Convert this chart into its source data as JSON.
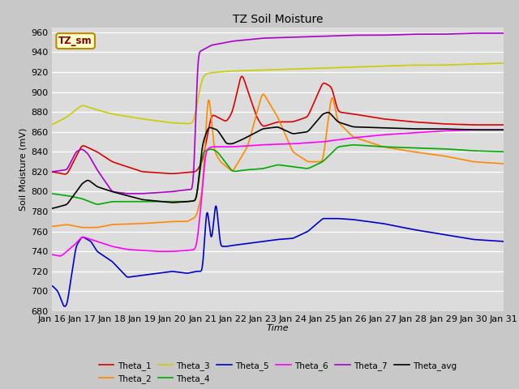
{
  "title": "TZ Soil Moisture",
  "xlabel": "Time",
  "ylabel": "Soil Moisture (mV)",
  "ylim": [
    680,
    965
  ],
  "yticks": [
    680,
    700,
    720,
    740,
    760,
    780,
    800,
    820,
    840,
    860,
    880,
    900,
    920,
    940,
    960
  ],
  "date_labels": [
    "Jan 16",
    "Jan 17",
    "Jan 18",
    "Jan 19",
    "Jan 20",
    "Jan 21",
    "Jan 22",
    "Jan 23",
    "Jan 24",
    "Jan 25",
    "Jan 26",
    "Jan 27",
    "Jan 28",
    "Jan 29",
    "Jan 30",
    "Jan 31"
  ],
  "legend_label": "TZ_sm",
  "plot_bg": "#dcdcdc",
  "fig_bg": "#c8c8c8",
  "colors": {
    "Theta_1": "#dd0000",
    "Theta_2": "#ff8800",
    "Theta_3": "#cccc00",
    "Theta_4": "#00aa00",
    "Theta_5": "#0000cc",
    "Theta_6": "#ff00ff",
    "Theta_7": "#aa00cc",
    "Theta_avg": "#000000"
  },
  "linewidth": 1.2
}
